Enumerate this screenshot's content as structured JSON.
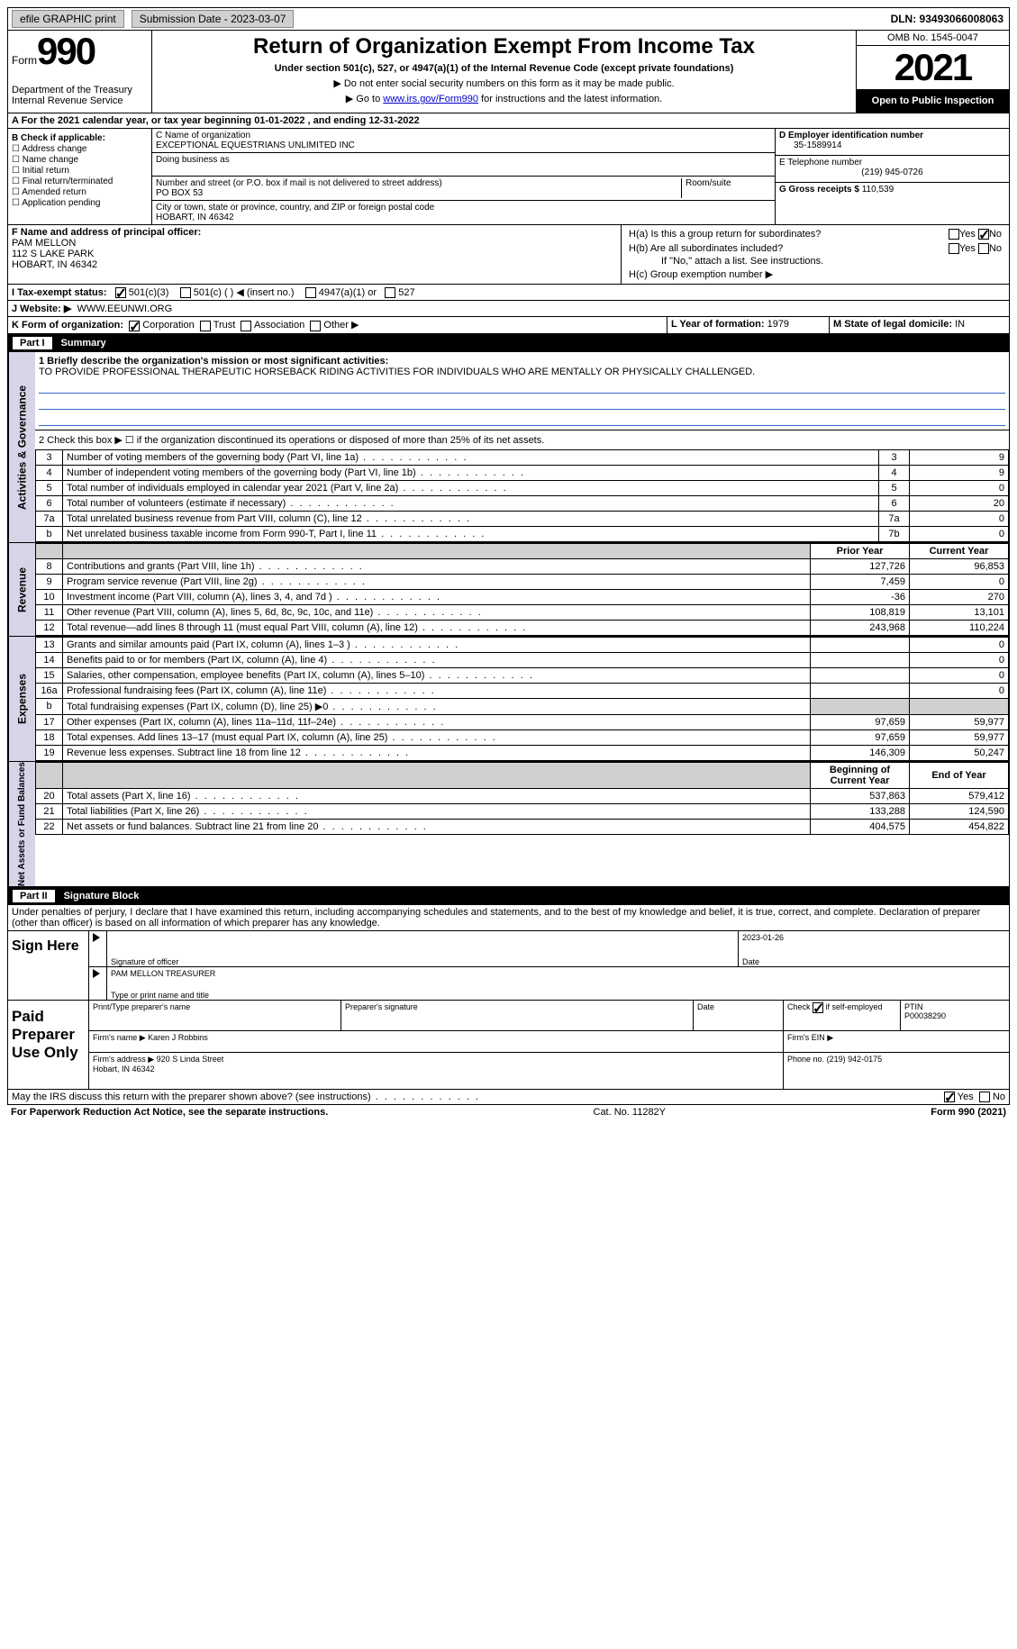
{
  "topbar": {
    "efile": "efile GRAPHIC print",
    "sub_label": "Submission Date - 2023-03-07",
    "dln": "DLN: 93493066008063"
  },
  "header": {
    "form_word": "Form",
    "form_num": "990",
    "dept": "Department of the Treasury\nInternal Revenue Service",
    "title": "Return of Organization Exempt From Income Tax",
    "sub": "Under section 501(c), 527, or 4947(a)(1) of the Internal Revenue Code (except private foundations)",
    "note1": "▶ Do not enter social security numbers on this form as it may be made public.",
    "note2_pre": "▶ Go to ",
    "note2_link": "www.irs.gov/Form990",
    "note2_post": " for instructions and the latest information.",
    "omb": "OMB No. 1545-0047",
    "year": "2021",
    "insp": "Open to Public Inspection"
  },
  "lineA": "A For the 2021 calendar year, or tax year beginning 01-01-2022   , and ending 12-31-2022",
  "boxB": {
    "hdr": "B Check if applicable:",
    "items": [
      "☐ Address change",
      "☐ Name change",
      "☐ Initial return",
      "☐ Final return/terminated",
      "☐ Amended return",
      "☐ Application pending"
    ]
  },
  "boxC": {
    "name_lbl": "C Name of organization",
    "name": "EXCEPTIONAL EQUESTRIANS UNLIMITED INC",
    "dba": "Doing business as",
    "addr_lbl": "Number and street (or P.O. box if mail is not delivered to street address)",
    "addr": "PO BOX 53",
    "room": "Room/suite",
    "city_lbl": "City or town, state or province, country, and ZIP or foreign postal code",
    "city": "HOBART, IN  46342"
  },
  "boxDE": {
    "d_lbl": "D Employer identification number",
    "d_val": "35-1589914",
    "e_lbl": "E Telephone number",
    "e_val": "(219) 945-0726",
    "g_lbl": "G Gross receipts $",
    "g_val": "110,539"
  },
  "boxF": {
    "lbl": "F Name and address of principal officer:",
    "name": "PAM MELLON",
    "addr1": "112 S LAKE PARK",
    "addr2": "HOBART, IN  46342"
  },
  "boxH": {
    "ha": "H(a)  Is this a group return for subordinates?",
    "hb": "H(b)  Are all subordinates included?",
    "hb_note": "If \"No,\" attach a list. See instructions.",
    "hc": "H(c)  Group exemption number ▶",
    "yes": "Yes",
    "no": "No"
  },
  "lineI": {
    "lbl": "I   Tax-exempt status:",
    "opts": [
      "501(c)(3)",
      "501(c) (  ) ◀ (insert no.)",
      "4947(a)(1) or",
      "527"
    ]
  },
  "lineJ": {
    "lbl": "J   Website: ▶",
    "val": "WWW.EEUNWI.ORG"
  },
  "lineK": {
    "lbl": "K Form of organization:",
    "opts": [
      "Corporation",
      "Trust",
      "Association",
      "Other ▶"
    ],
    "l_lbl": "L Year of formation:",
    "l_val": "1979",
    "m_lbl": "M State of legal domicile:",
    "m_val": "IN"
  },
  "part1": {
    "tag": "Part I",
    "title": "Summary",
    "q1_lbl": "1  Briefly describe the organization's mission or most significant activities:",
    "q1_val": "TO PROVIDE PROFESSIONAL THERAPEUTIC HORSEBACK RIDING ACTIVITIES FOR INDIVIDUALS WHO ARE MENTALLY OR PHYSICALLY CHALLENGED.",
    "q2": "2   Check this box ▶ ☐  if the organization discontinued its operations or disposed of more than 25% of its net assets.",
    "gov_rows": [
      {
        "n": "3",
        "txt": "Number of voting members of the governing body (Part VI, line 1a)",
        "ln": "3",
        "v": "9"
      },
      {
        "n": "4",
        "txt": "Number of independent voting members of the governing body (Part VI, line 1b)",
        "ln": "4",
        "v": "9"
      },
      {
        "n": "5",
        "txt": "Total number of individuals employed in calendar year 2021 (Part V, line 2a)",
        "ln": "5",
        "v": "0"
      },
      {
        "n": "6",
        "txt": "Total number of volunteers (estimate if necessary)",
        "ln": "6",
        "v": "20"
      },
      {
        "n": "7a",
        "txt": "Total unrelated business revenue from Part VIII, column (C), line 12",
        "ln": "7a",
        "v": "0"
      },
      {
        "n": "b",
        "txt": "Net unrelated business taxable income from Form 990-T, Part I, line 11",
        "ln": "7b",
        "v": "0"
      }
    ],
    "col_prior": "Prior Year",
    "col_curr": "Current Year",
    "rev_rows": [
      {
        "n": "8",
        "txt": "Contributions and grants (Part VIII, line 1h)",
        "p": "127,726",
        "c": "96,853"
      },
      {
        "n": "9",
        "txt": "Program service revenue (Part VIII, line 2g)",
        "p": "7,459",
        "c": "0"
      },
      {
        "n": "10",
        "txt": "Investment income (Part VIII, column (A), lines 3, 4, and 7d )",
        "p": "-36",
        "c": "270"
      },
      {
        "n": "11",
        "txt": "Other revenue (Part VIII, column (A), lines 5, 6d, 8c, 9c, 10c, and 11e)",
        "p": "108,819",
        "c": "13,101"
      },
      {
        "n": "12",
        "txt": "Total revenue—add lines 8 through 11 (must equal Part VIII, column (A), line 12)",
        "p": "243,968",
        "c": "110,224"
      }
    ],
    "exp_rows": [
      {
        "n": "13",
        "txt": "Grants and similar amounts paid (Part IX, column (A), lines 1–3 )",
        "p": "",
        "c": "0"
      },
      {
        "n": "14",
        "txt": "Benefits paid to or for members (Part IX, column (A), line 4)",
        "p": "",
        "c": "0"
      },
      {
        "n": "15",
        "txt": "Salaries, other compensation, employee benefits (Part IX, column (A), lines 5–10)",
        "p": "",
        "c": "0"
      },
      {
        "n": "16a",
        "txt": "Professional fundraising fees (Part IX, column (A), line 11e)",
        "p": "",
        "c": "0"
      },
      {
        "n": "b",
        "txt": "Total fundraising expenses (Part IX, column (D), line 25) ▶0",
        "p": "GRAY",
        "c": "GRAY"
      },
      {
        "n": "17",
        "txt": "Other expenses (Part IX, column (A), lines 11a–11d, 11f–24e)",
        "p": "97,659",
        "c": "59,977"
      },
      {
        "n": "18",
        "txt": "Total expenses. Add lines 13–17 (must equal Part IX, column (A), line 25)",
        "p": "97,659",
        "c": "59,977"
      },
      {
        "n": "19",
        "txt": "Revenue less expenses. Subtract line 18 from line 12",
        "p": "146,309",
        "c": "50,247"
      }
    ],
    "col_beg": "Beginning of Current Year",
    "col_end": "End of Year",
    "net_rows": [
      {
        "n": "20",
        "txt": "Total assets (Part X, line 16)",
        "p": "537,863",
        "c": "579,412"
      },
      {
        "n": "21",
        "txt": "Total liabilities (Part X, line 26)",
        "p": "133,288",
        "c": "124,590"
      },
      {
        "n": "22",
        "txt": "Net assets or fund balances. Subtract line 21 from line 20",
        "p": "404,575",
        "c": "454,822"
      }
    ],
    "side_gov": "Activities & Governance",
    "side_rev": "Revenue",
    "side_exp": "Expenses",
    "side_net": "Net Assets or Fund Balances"
  },
  "part2": {
    "tag": "Part II",
    "title": "Signature Block",
    "decl": "Under penalties of perjury, I declare that I have examined this return, including accompanying schedules and statements, and to the best of my knowledge and belief, it is true, correct, and complete. Declaration of preparer (other than officer) is based on all information of which preparer has any knowledge.",
    "sign_here": "Sign Here",
    "sig_officer": "Signature of officer",
    "sig_date": "2023-01-26",
    "date_lbl": "Date",
    "name_title": "PAM MELLON  TREASURER",
    "type_lbl": "Type or print name and title",
    "paid": "Paid Preparer Use Only",
    "prep_name_lbl": "Print/Type preparer's name",
    "prep_sig_lbl": "Preparer's signature",
    "check_lbl": "Check ☑ if self-employed",
    "ptin_lbl": "PTIN",
    "ptin": "P00038290",
    "firm_name_lbl": "Firm's name   ▶",
    "firm_name": "Karen J Robbins",
    "firm_ein_lbl": "Firm's EIN ▶",
    "firm_addr_lbl": "Firm's address ▶",
    "firm_addr": "920 S Linda Street\nHobart, IN  46342",
    "phone_lbl": "Phone no.",
    "phone": "(219) 942-0175",
    "discuss": "May the IRS discuss this return with the preparer shown above? (see instructions)",
    "yes": "Yes",
    "no": "No"
  },
  "footer": {
    "pra": "For Paperwork Reduction Act Notice, see the separate instructions.",
    "cat": "Cat. No. 11282Y",
    "form": "Form 990 (2021)"
  },
  "colors": {
    "link": "#0000cc",
    "lavender": "#d8d4e8",
    "underline": "#3366cc",
    "gray": "#d0d0d0"
  }
}
